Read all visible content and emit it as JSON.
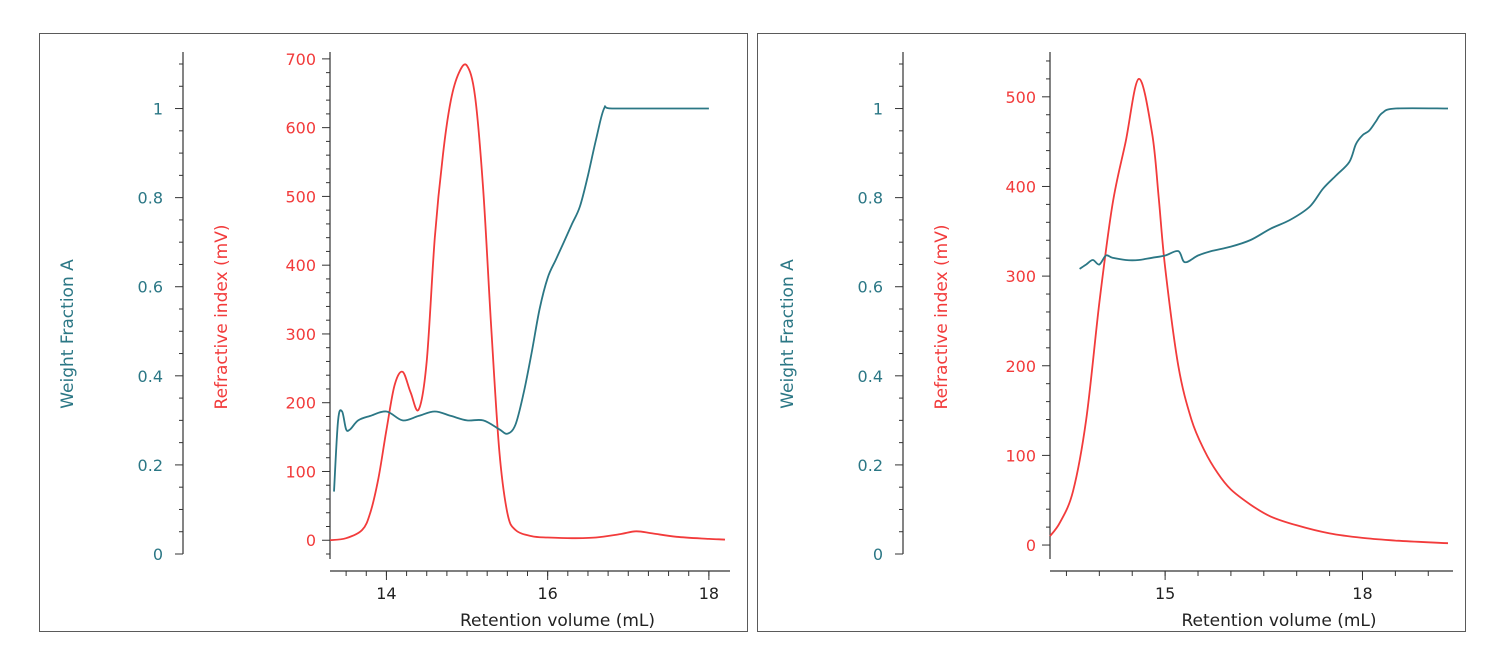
{
  "chart_data": [
    {
      "type": "line",
      "xlabel": "Retention volume (mL)",
      "xlim": [
        13.3,
        18.2
      ],
      "xticks": [
        14,
        16,
        18
      ],
      "y_left_label": "Weight Fraction A",
      "y_left_lim": [
        0,
        1.1
      ],
      "y_left_ticks": [
        0,
        0.2,
        0.4,
        0.6,
        0.8,
        1
      ],
      "y_right_label": "Refractive index (mV)",
      "y_right_lim": [
        -20,
        710
      ],
      "y_right_ticks": [
        0,
        100,
        200,
        300,
        400,
        500,
        600,
        700
      ],
      "colors": {
        "weight_fraction": "#2b7785",
        "refractive_index": "#f23b3b"
      },
      "series": [
        {
          "axis": "refractive_index",
          "x": [
            13.3,
            13.5,
            13.7,
            13.8,
            13.9,
            14.0,
            14.1,
            14.2,
            14.3,
            14.4,
            14.5,
            14.6,
            14.7,
            14.8,
            14.9,
            15.0,
            15.1,
            15.2,
            15.3,
            15.4,
            15.5,
            15.6,
            15.8,
            16.0,
            16.3,
            16.6,
            16.9,
            17.1,
            17.3,
            17.6,
            18.0,
            18.2
          ],
          "values": [
            0,
            3,
            15,
            40,
            90,
            160,
            225,
            245,
            215,
            190,
            260,
            440,
            560,
            640,
            680,
            690,
            645,
            510,
            310,
            130,
            40,
            15,
            6,
            4,
            3,
            4,
            9,
            13,
            10,
            5,
            2,
            1
          ]
        },
        {
          "axis": "weight_fraction",
          "x": [
            13.35,
            13.4,
            13.45,
            13.5,
            13.55,
            13.65,
            13.8,
            14.0,
            14.2,
            14.4,
            14.6,
            14.8,
            15.0,
            15.2,
            15.4,
            15.5,
            15.6,
            15.7,
            15.8,
            15.9,
            16.0,
            16.1,
            16.2,
            16.3,
            16.4,
            16.5,
            16.6,
            16.7,
            16.8,
            17.5,
            18.0
          ],
          "values": [
            0.14,
            0.3,
            0.32,
            0.28,
            0.28,
            0.3,
            0.31,
            0.32,
            0.3,
            0.31,
            0.32,
            0.31,
            0.3,
            0.3,
            0.28,
            0.27,
            0.29,
            0.36,
            0.45,
            0.55,
            0.62,
            0.66,
            0.7,
            0.74,
            0.78,
            0.85,
            0.93,
            1.0,
            1.0,
            1.0,
            1.0
          ]
        }
      ]
    },
    {
      "type": "line",
      "xlabel": "Retention volume (mL)",
      "xlim": [
        13.25,
        19.3
      ],
      "xticks": [
        15,
        18
      ],
      "xtick_labels": [
        "15",
        "18"
      ],
      "y_left_label": "Weight Fraction A",
      "y_left_lim": [
        0,
        1.1
      ],
      "y_left_ticks": [
        0,
        0.2,
        0.4,
        0.6,
        0.8,
        1
      ],
      "y_right_label": "Refractive index (mV)",
      "y_right_lim": [
        -10,
        550
      ],
      "y_right_ticks": [
        0,
        100,
        200,
        300,
        400,
        500
      ],
      "colors": {
        "weight_fraction": "#2b7785",
        "refractive_index": "#f23b3b"
      },
      "series": [
        {
          "axis": "refractive_index",
          "x": [
            13.25,
            13.4,
            13.6,
            13.8,
            14.0,
            14.2,
            14.4,
            14.6,
            14.8,
            14.9,
            15.0,
            15.2,
            15.4,
            15.6,
            15.8,
            16.0,
            16.3,
            16.6,
            17.0,
            17.5,
            18.0,
            18.5,
            19.0,
            19.3
          ],
          "values": [
            10,
            25,
            60,
            140,
            270,
            380,
            450,
            520,
            460,
            390,
            310,
            200,
            140,
            105,
            80,
            62,
            45,
            32,
            22,
            13,
            8,
            5,
            3,
            2
          ]
        },
        {
          "axis": "weight_fraction",
          "x": [
            13.7,
            13.8,
            13.9,
            14.0,
            14.1,
            14.2,
            14.4,
            14.6,
            14.8,
            15.0,
            15.2,
            15.3,
            15.5,
            15.7,
            16.0,
            16.3,
            16.6,
            16.9,
            17.2,
            17.4,
            17.6,
            17.8,
            17.9,
            18.0,
            18.1,
            18.2,
            18.3,
            18.5,
            19.3
          ],
          "values": [
            0.64,
            0.65,
            0.66,
            0.65,
            0.67,
            0.665,
            0.66,
            0.66,
            0.665,
            0.67,
            0.68,
            0.655,
            0.67,
            0.68,
            0.69,
            0.705,
            0.73,
            0.75,
            0.78,
            0.82,
            0.85,
            0.88,
            0.92,
            0.94,
            0.95,
            0.97,
            0.99,
            1.0,
            1.0
          ]
        }
      ]
    }
  ]
}
